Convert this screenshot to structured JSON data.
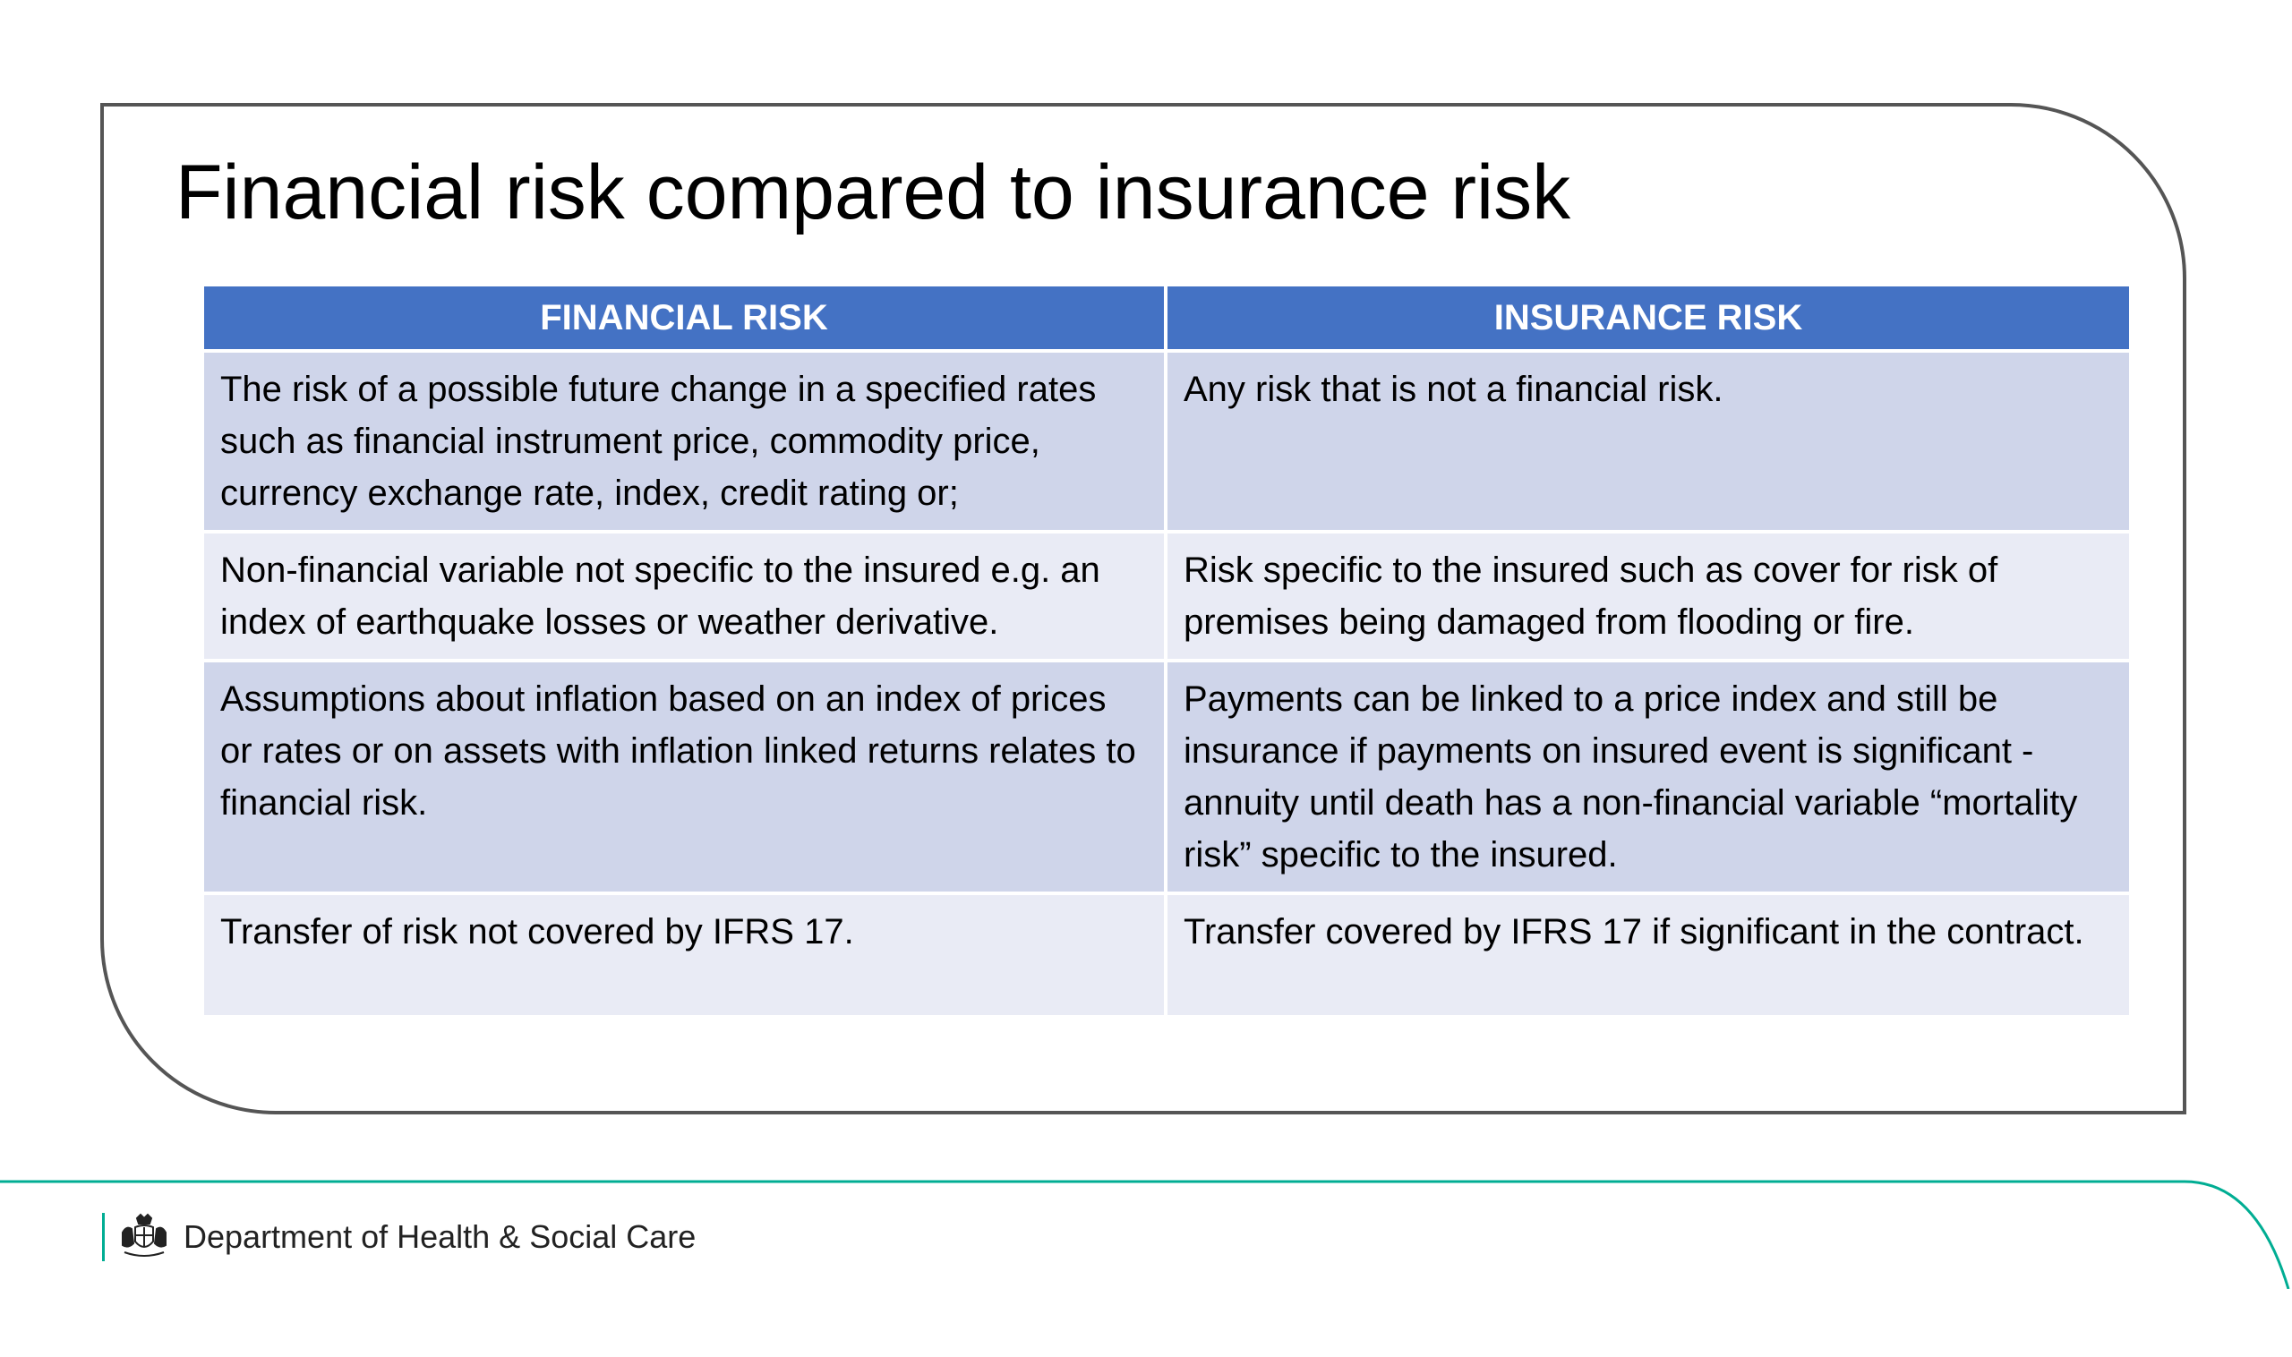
{
  "slide": {
    "title": "Financial risk compared to insurance risk"
  },
  "table": {
    "headers": [
      "FINANCIAL RISK",
      "INSURANCE RISK"
    ],
    "rows": [
      {
        "financial": "The risk of a possible future change in a specified rates such as financial instrument price, commodity price, currency exchange rate, index, credit rating or;",
        "insurance": "Any risk that is not a financial risk."
      },
      {
        "financial": "Non-financial variable not specific to the insured e.g. an index of earthquake losses or weather derivative.",
        "insurance": "Risk specific to the insured such as cover for risk of premises being damaged from flooding or fire."
      },
      {
        "financial": "Assumptions about inflation based on an index of prices or rates or on assets with inflation linked returns relates to financial risk.",
        "insurance": "Payments can be linked to a price index and still be insurance if payments on insured event is significant - annuity until death has a non-financial variable “mortality risk” specific to the insured."
      },
      {
        "financial": "Transfer of risk not covered by IFRS 17.",
        "insurance": "Transfer covered by IFRS 17 if significant in the contract."
      }
    ]
  },
  "footer": {
    "department": "Department of Health & Social Care",
    "logo_icon": "royal-crest-icon"
  },
  "colors": {
    "header_bg": "#4472c4",
    "row_odd": "#cfd5ea",
    "row_even": "#e9ebf5",
    "footer_accent": "#00ad93",
    "frame_border": "#555555"
  }
}
